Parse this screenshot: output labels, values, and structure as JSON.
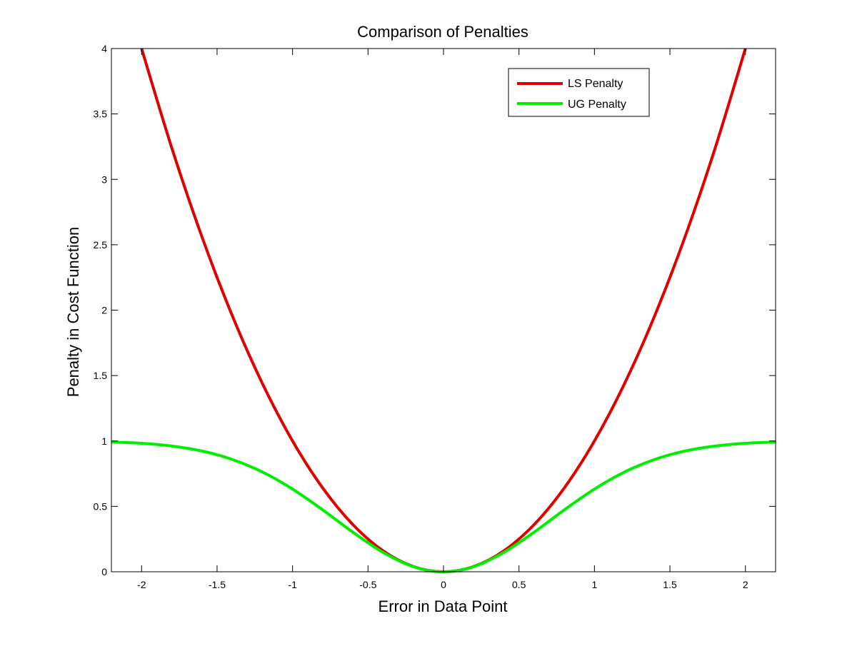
{
  "chart_data": {
    "type": "line",
    "title": "Comparison of Penalties",
    "xlabel": "Error in Data Point",
    "ylabel": "Penalty in Cost Function",
    "xlim": [
      -2.2,
      2.2
    ],
    "ylim": [
      0,
      4
    ],
    "xticks": [
      -2,
      -1.5,
      -1,
      -0.5,
      0,
      0.5,
      1,
      1.5,
      2
    ],
    "xtick_labels": [
      "-2",
      "-1.5",
      "-1",
      "-0.5",
      "0",
      "0.5",
      "1",
      "1.5",
      "2"
    ],
    "yticks": [
      0,
      0.5,
      1,
      1.5,
      2,
      2.5,
      3,
      3.5,
      4
    ],
    "ytick_labels": [
      "0",
      "0.5",
      "1",
      "1.5",
      "2",
      "2.5",
      "3",
      "3.5",
      "4"
    ],
    "grid": false,
    "legend_position": "top-right",
    "series": [
      {
        "name": "LS Penalty",
        "color": "#e00000",
        "x": [
          -2,
          -1.8,
          -1.6,
          -1.4,
          -1.2,
          -1,
          -0.8,
          -0.6,
          -0.4,
          -0.2,
          0,
          0.2,
          0.4,
          0.6,
          0.8,
          1,
          1.2,
          1.4,
          1.6,
          1.8,
          2
        ],
        "y": [
          4,
          3.24,
          2.56,
          1.96,
          1.44,
          1,
          0.64,
          0.36,
          0.16,
          0.04,
          0,
          0.04,
          0.16,
          0.36,
          0.64,
          1,
          1.44,
          1.96,
          2.56,
          3.24,
          4
        ]
      },
      {
        "name": "UG Penalty",
        "color": "#00ee00",
        "x": [
          -2.2,
          -2,
          -1.8,
          -1.6,
          -1.4,
          -1.2,
          -1,
          -0.8,
          -0.6,
          -0.4,
          -0.2,
          0,
          0.2,
          0.4,
          0.6,
          0.8,
          1,
          1.2,
          1.4,
          1.6,
          1.8,
          2,
          2.2
        ],
        "y": [
          0.992,
          0.982,
          0.961,
          0.923,
          0.859,
          0.763,
          0.632,
          0.473,
          0.302,
          0.148,
          0.039,
          0,
          0.039,
          0.148,
          0.302,
          0.473,
          0.632,
          0.763,
          0.859,
          0.923,
          0.961,
          0.982,
          0.992
        ]
      }
    ]
  }
}
